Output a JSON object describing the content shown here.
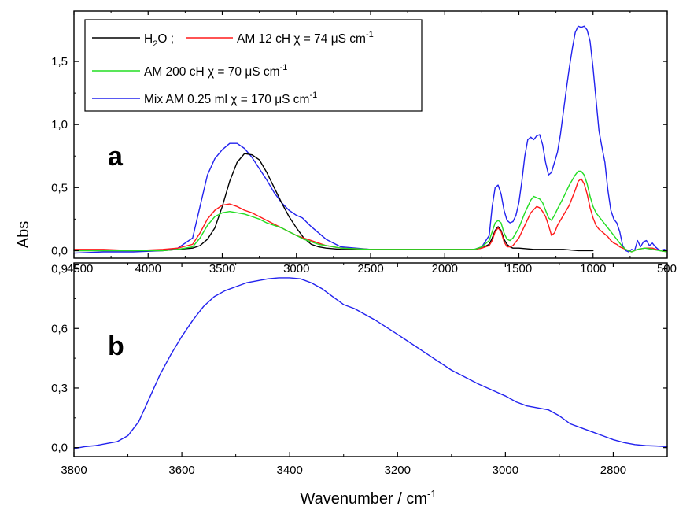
{
  "colors": {
    "h2o": "#000000",
    "am12": "#ff1a1a",
    "am200": "#22dd22",
    "mix": "#2222ee"
  },
  "figure": {
    "y_axis_label": "Abs",
    "x_axis_label_main": "Wavenumber / cm",
    "x_axis_label_sup": "-1"
  },
  "chart_data": [
    {
      "type": "line",
      "panel_label": "a",
      "xlim": [
        4500,
        500
      ],
      "ylim": [
        -0.06,
        1.9
      ],
      "x_ticks": [
        4500,
        4000,
        3500,
        3000,
        2500,
        2000,
        1500,
        1000,
        500
      ],
      "y_ticks": [
        {
          "value": 0.0,
          "label": "0,0"
        },
        {
          "value": 0.5,
          "label": "0,5"
        },
        {
          "value": 1.0,
          "label": "1,0"
        },
        {
          "value": 1.5,
          "label": "1,5"
        }
      ],
      "legend": {
        "placement": "top-left",
        "rows": [
          [
            {
              "series": "h2o",
              "main": "H",
              "sub": "2",
              "post": "O ;"
            },
            {
              "series": "am12",
              "main": "AM 12 cH χ = 74 μS cm",
              "sup": "-1"
            }
          ],
          [
            {
              "series": "am200",
              "main": "AM 200 cH χ = 70 μS cm",
              "sup": "-1"
            }
          ],
          [
            {
              "series": "mix",
              "main": "Mix AM 0.25 ml  χ = 170 μS cm",
              "sup": "-1"
            }
          ]
        ]
      },
      "series": [
        {
          "key": "mix",
          "name": "Mix AM 0.25 ml  χ = 170 μS cm-1",
          "x": [
            4500,
            4300,
            4100,
            3900,
            3800,
            3700,
            3650,
            3600,
            3550,
            3500,
            3450,
            3400,
            3350,
            3300,
            3250,
            3200,
            3150,
            3100,
            3050,
            3000,
            2960,
            2900,
            2800,
            2700,
            2500,
            2300,
            2100,
            2000,
            1900,
            1800,
            1750,
            1700,
            1680,
            1660,
            1640,
            1620,
            1600,
            1580,
            1560,
            1540,
            1520,
            1500,
            1480,
            1460,
            1440,
            1420,
            1400,
            1380,
            1360,
            1340,
            1320,
            1300,
            1280,
            1260,
            1240,
            1220,
            1200,
            1180,
            1160,
            1140,
            1120,
            1100,
            1080,
            1060,
            1040,
            1020,
            1000,
            980,
            960,
            940,
            920,
            900,
            880,
            860,
            840,
            820,
            800,
            780,
            760,
            740,
            720,
            700,
            680,
            660,
            640,
            620,
            600,
            580,
            560,
            540,
            520,
            500
          ],
          "y": [
            -0.02,
            -0.01,
            -0.01,
            0.0,
            0.02,
            0.1,
            0.35,
            0.6,
            0.73,
            0.8,
            0.85,
            0.85,
            0.81,
            0.74,
            0.65,
            0.56,
            0.46,
            0.38,
            0.32,
            0.28,
            0.26,
            0.19,
            0.09,
            0.03,
            0.01,
            0.01,
            0.01,
            0.01,
            0.01,
            0.01,
            0.03,
            0.12,
            0.35,
            0.5,
            0.52,
            0.45,
            0.32,
            0.24,
            0.22,
            0.23,
            0.28,
            0.38,
            0.55,
            0.75,
            0.88,
            0.9,
            0.88,
            0.91,
            0.92,
            0.84,
            0.7,
            0.6,
            0.62,
            0.7,
            0.78,
            0.92,
            1.1,
            1.28,
            1.45,
            1.6,
            1.73,
            1.78,
            1.77,
            1.78,
            1.75,
            1.66,
            1.45,
            1.2,
            0.95,
            0.82,
            0.7,
            0.48,
            0.32,
            0.25,
            0.22,
            0.15,
            0.04,
            0.0,
            -0.01,
            0.01,
            0.0,
            0.08,
            0.03,
            0.07,
            0.08,
            0.04,
            0.06,
            0.03,
            0.01,
            0.0,
            0.01,
            0.0
          ]
        },
        {
          "key": "h2o",
          "name": "H2O",
          "x": [
            4500,
            4300,
            4100,
            3900,
            3800,
            3700,
            3650,
            3600,
            3550,
            3500,
            3450,
            3400,
            3350,
            3300,
            3250,
            3200,
            3150,
            3100,
            3050,
            3000,
            2950,
            2900,
            2850,
            2800,
            2700,
            2500,
            2300,
            2100,
            2000,
            1900,
            1800,
            1750,
            1700,
            1680,
            1660,
            1640,
            1620,
            1600,
            1580,
            1560,
            1540,
            1500,
            1400,
            1300,
            1200,
            1100,
            1000
          ],
          "y": [
            0.0,
            0.0,
            0.0,
            0.0,
            0.01,
            0.02,
            0.04,
            0.09,
            0.18,
            0.35,
            0.55,
            0.7,
            0.77,
            0.76,
            0.72,
            0.62,
            0.5,
            0.38,
            0.27,
            0.18,
            0.1,
            0.05,
            0.03,
            0.02,
            0.01,
            0.01,
            0.01,
            0.01,
            0.01,
            0.01,
            0.01,
            0.02,
            0.05,
            0.1,
            0.16,
            0.19,
            0.16,
            0.09,
            0.05,
            0.03,
            0.02,
            0.02,
            0.01,
            0.01,
            0.01,
            0.0,
            0.0
          ]
        },
        {
          "key": "am12",
          "name": "AM 12 cH χ = 74 μS cm-1",
          "x": [
            4500,
            4300,
            4100,
            3900,
            3800,
            3700,
            3650,
            3600,
            3550,
            3500,
            3450,
            3400,
            3350,
            3300,
            3250,
            3200,
            3150,
            3100,
            3050,
            3000,
            2950,
            2900,
            2850,
            2800,
            2700,
            2500,
            2300,
            2100,
            2000,
            1900,
            1800,
            1750,
            1700,
            1680,
            1660,
            1640,
            1620,
            1600,
            1580,
            1560,
            1540,
            1500,
            1460,
            1420,
            1380,
            1360,
            1340,
            1320,
            1300,
            1280,
            1260,
            1240,
            1200,
            1160,
            1120,
            1100,
            1080,
            1060,
            1040,
            1020,
            1000,
            980,
            960,
            940,
            920,
            900,
            880,
            860,
            840,
            820,
            800,
            780,
            760,
            740,
            700,
            650,
            600,
            550,
            500
          ],
          "y": [
            0.01,
            0.01,
            0.0,
            0.01,
            0.02,
            0.05,
            0.14,
            0.25,
            0.32,
            0.36,
            0.37,
            0.35,
            0.32,
            0.3,
            0.27,
            0.24,
            0.21,
            0.18,
            0.15,
            0.12,
            0.1,
            0.08,
            0.06,
            0.04,
            0.02,
            0.01,
            0.01,
            0.01,
            0.01,
            0.01,
            0.01,
            0.02,
            0.04,
            0.08,
            0.15,
            0.18,
            0.15,
            0.07,
            0.03,
            0.03,
            0.04,
            0.1,
            0.2,
            0.3,
            0.35,
            0.34,
            0.31,
            0.27,
            0.2,
            0.12,
            0.14,
            0.2,
            0.28,
            0.36,
            0.48,
            0.55,
            0.57,
            0.53,
            0.45,
            0.34,
            0.26,
            0.2,
            0.17,
            0.15,
            0.13,
            0.11,
            0.08,
            0.06,
            0.05,
            0.03,
            0.02,
            0.01,
            0.0,
            -0.01,
            0.01,
            0.02,
            0.02,
            0.0,
            -0.01
          ]
        },
        {
          "key": "am200",
          "name": "AM 200 cH χ = 70 μS cm-1",
          "x": [
            4500,
            4300,
            4100,
            3900,
            3800,
            3700,
            3650,
            3600,
            3550,
            3500,
            3450,
            3400,
            3350,
            3300,
            3250,
            3200,
            3150,
            3100,
            3050,
            3000,
            2950,
            2900,
            2850,
            2800,
            2700,
            2500,
            2300,
            2100,
            2000,
            1900,
            1800,
            1750,
            1700,
            1680,
            1660,
            1640,
            1620,
            1600,
            1580,
            1560,
            1540,
            1500,
            1460,
            1420,
            1400,
            1380,
            1360,
            1340,
            1320,
            1300,
            1280,
            1260,
            1240,
            1200,
            1160,
            1120,
            1100,
            1080,
            1060,
            1040,
            1020,
            1000,
            980,
            960,
            940,
            920,
            900,
            880,
            860,
            840,
            820,
            800,
            780,
            760,
            740,
            700,
            650,
            600,
            550,
            500
          ],
          "y": [
            0.0,
            0.0,
            0.0,
            0.0,
            0.01,
            0.03,
            0.1,
            0.2,
            0.27,
            0.3,
            0.31,
            0.3,
            0.29,
            0.27,
            0.25,
            0.22,
            0.2,
            0.18,
            0.15,
            0.12,
            0.09,
            0.07,
            0.05,
            0.04,
            0.02,
            0.01,
            0.01,
            0.01,
            0.01,
            0.01,
            0.01,
            0.03,
            0.08,
            0.15,
            0.22,
            0.24,
            0.22,
            0.14,
            0.09,
            0.08,
            0.1,
            0.18,
            0.3,
            0.4,
            0.43,
            0.42,
            0.41,
            0.38,
            0.32,
            0.26,
            0.24,
            0.28,
            0.33,
            0.42,
            0.52,
            0.6,
            0.63,
            0.63,
            0.6,
            0.53,
            0.43,
            0.35,
            0.3,
            0.27,
            0.24,
            0.21,
            0.18,
            0.15,
            0.12,
            0.09,
            0.06,
            0.03,
            0.01,
            0.0,
            -0.01,
            0.01,
            0.02,
            0.01,
            0.0,
            -0.01
          ]
        }
      ]
    },
    {
      "type": "line",
      "panel_label": "b",
      "xlim": [
        3800,
        2700
      ],
      "ylim": [
        -0.045,
        0.93
      ],
      "x_ticks": [
        3800,
        3600,
        3400,
        3200,
        3000,
        2800
      ],
      "y_ticks": [
        {
          "value": 0.0,
          "label": "0,0"
        },
        {
          "value": 0.3,
          "label": "0,3"
        },
        {
          "value": 0.6,
          "label": "0,6"
        },
        {
          "value": 0.9,
          "label": "0,9"
        }
      ],
      "series": [
        {
          "key": "mix",
          "x": [
            3800,
            3780,
            3760,
            3740,
            3720,
            3700,
            3680,
            3660,
            3640,
            3620,
            3600,
            3580,
            3560,
            3540,
            3520,
            3500,
            3480,
            3460,
            3440,
            3420,
            3400,
            3380,
            3360,
            3340,
            3320,
            3300,
            3280,
            3260,
            3240,
            3200,
            3150,
            3100,
            3050,
            3000,
            2980,
            2960,
            2940,
            2920,
            2900,
            2880,
            2860,
            2840,
            2820,
            2800,
            2780,
            2760,
            2740,
            2720,
            2700
          ],
          "y": [
            -0.005,
            0.005,
            0.01,
            0.02,
            0.03,
            0.06,
            0.13,
            0.25,
            0.37,
            0.47,
            0.56,
            0.64,
            0.71,
            0.76,
            0.79,
            0.81,
            0.83,
            0.84,
            0.85,
            0.855,
            0.855,
            0.85,
            0.83,
            0.8,
            0.76,
            0.72,
            0.7,
            0.67,
            0.64,
            0.57,
            0.48,
            0.39,
            0.32,
            0.26,
            0.23,
            0.21,
            0.2,
            0.19,
            0.16,
            0.12,
            0.1,
            0.08,
            0.06,
            0.04,
            0.025,
            0.015,
            0.01,
            0.008,
            0.005
          ]
        }
      ]
    }
  ]
}
